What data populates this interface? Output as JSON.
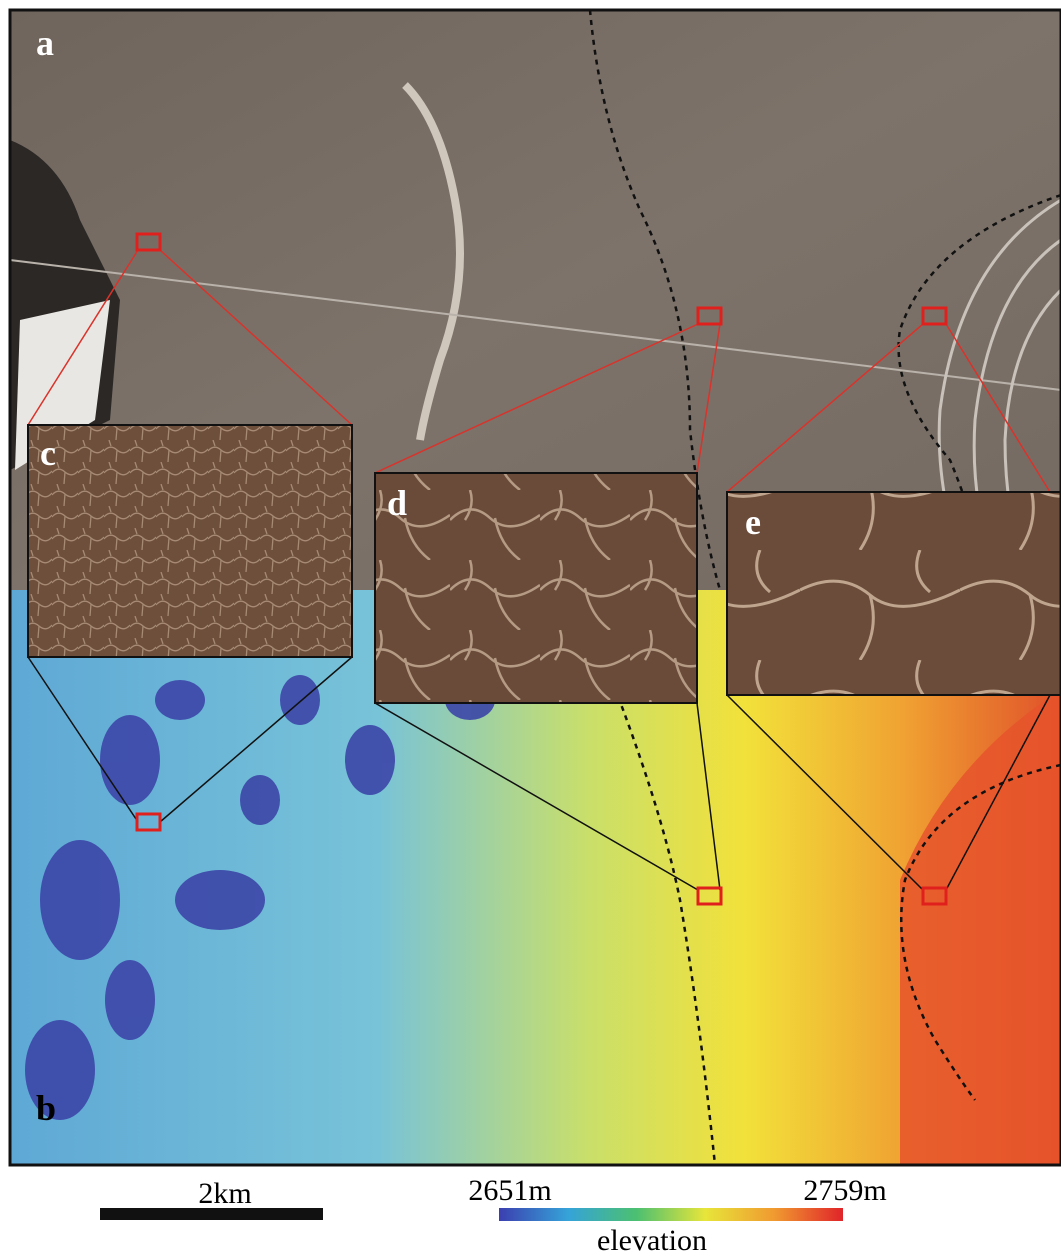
{
  "panels": {
    "a": "a",
    "b": "b"
  },
  "insets": [
    {
      "label": "c"
    },
    {
      "label": "d"
    },
    {
      "label": "e"
    }
  ],
  "scale_bar": {
    "label": "2km"
  },
  "colorbar": {
    "min_label": "2651m",
    "max_label": "2759m",
    "title": "elevation"
  }
}
